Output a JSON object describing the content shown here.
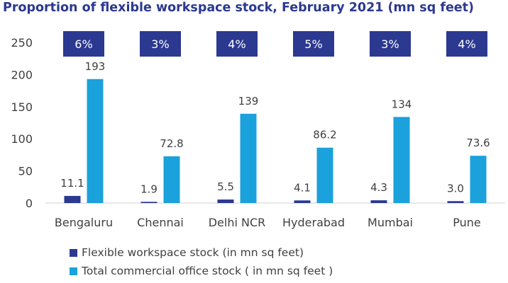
{
  "chart_data": {
    "type": "bar",
    "title": "Proportion of flexible workspace stock, February 2021 (mn sq feet)",
    "categories": [
      "Bengaluru",
      "Chennai",
      "Delhi NCR",
      "Hyderabad",
      "Mumbai",
      "Pune"
    ],
    "series": [
      {
        "name": "Flexible workspace stock (in mn sq feet)",
        "values": [
          11.1,
          1.9,
          5.5,
          4.1,
          4.3,
          3.0
        ],
        "labels": [
          "11.1",
          "1.9",
          "5.5",
          "4.1",
          "4.3",
          "3.0"
        ],
        "color": "#2b3990"
      },
      {
        "name": "Total commercial office stock ( in mn sq feet )",
        "values": [
          193,
          72.8,
          139,
          86.2,
          134,
          73.6
        ],
        "labels": [
          "193",
          "72.8",
          "139",
          "86.2",
          "134",
          "73.6"
        ],
        "color": "#1ba1db"
      }
    ],
    "proportion_labels": [
      "6%",
      "3%",
      "4%",
      "5%",
      "3%",
      "4%"
    ],
    "proportion_badge_color": "#2b3990",
    "ylim": [
      0,
      250
    ],
    "yticks": [
      "0",
      "50",
      "100",
      "150",
      "200",
      "250"
    ],
    "xlabel": "",
    "ylabel": "",
    "grid": false,
    "legend_position": "bottom"
  }
}
